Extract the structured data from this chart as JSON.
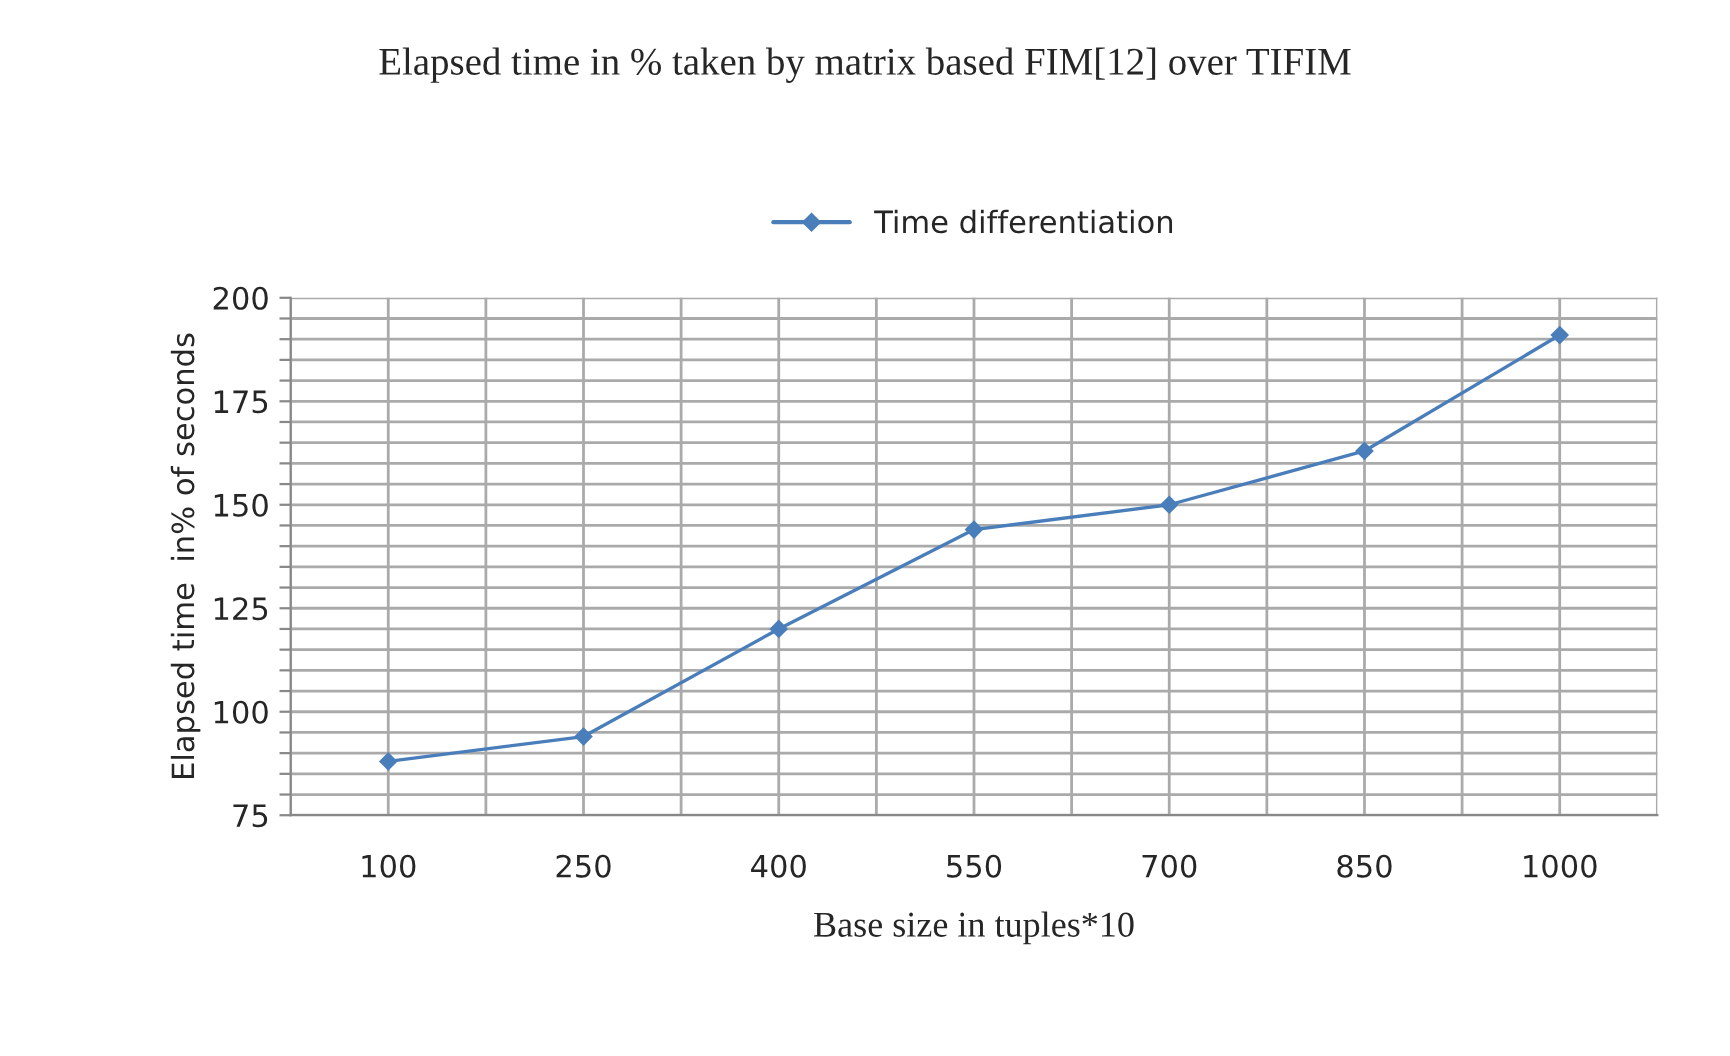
{
  "chart_data": {
    "type": "line",
    "title": "Elapsed time in % taken by matrix based FIM[12] over TIFIM",
    "xlabel": "Base size in tuples*10",
    "ylabel": "Elapsed time  in% of seconds",
    "categories": [
      "100",
      "250",
      "400",
      "550",
      "700",
      "850",
      "1000"
    ],
    "series": [
      {
        "name": "Time differentiation",
        "color": "#4a7ebb",
        "values": [
          88,
          94,
          120,
          144,
          150,
          163,
          191
        ]
      }
    ],
    "ylim": [
      75,
      200
    ],
    "yticks": [
      75,
      {
        "value": 80,
        "label": null
      },
      {
        "value": 85,
        "label": null
      },
      {
        "value": 90,
        "label": null
      },
      {
        "value": 95,
        "label": null
      },
      100,
      {
        "value": 105,
        "label": null
      },
      {
        "value": 110,
        "label": null
      },
      {
        "value": 115,
        "label": null
      },
      {
        "value": 120,
        "label": null
      },
      125,
      {
        "value": 130,
        "label": null
      },
      {
        "value": 135,
        "label": null
      },
      {
        "value": 140,
        "label": null
      },
      {
        "value": 145,
        "label": null
      },
      150,
      {
        "value": 155,
        "label": null
      },
      {
        "value": 160,
        "label": null
      },
      {
        "value": 165,
        "label": null
      },
      {
        "value": 170,
        "label": null
      },
      175,
      {
        "value": 180,
        "label": null
      },
      {
        "value": 185,
        "label": null
      },
      {
        "value": 190,
        "label": null
      },
      {
        "value": 195,
        "label": null
      },
      200
    ],
    "grid": true,
    "legend": "top",
    "marker": "diamond",
    "line_style": "solid"
  }
}
